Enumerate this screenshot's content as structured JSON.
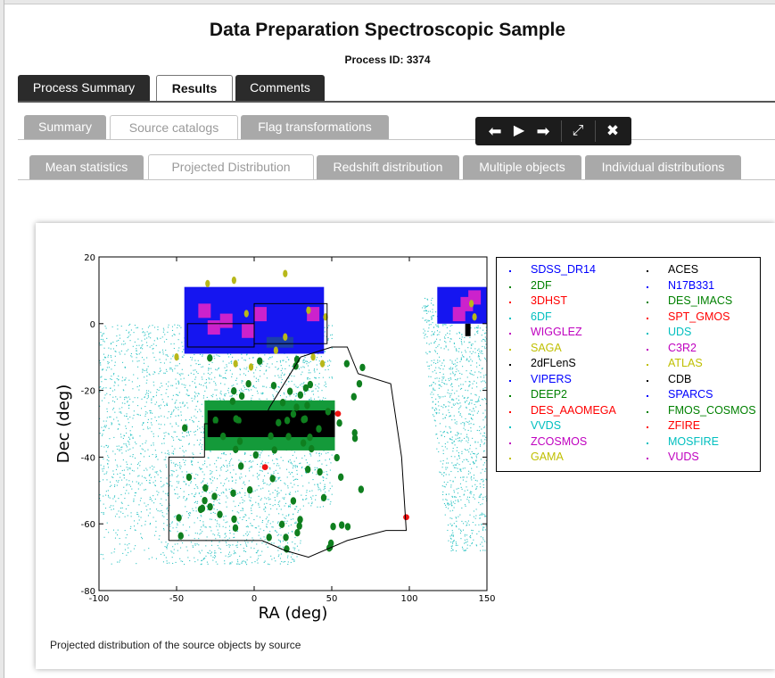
{
  "page": {
    "title": "Data Preparation Spectroscopic Sample",
    "process_id": "Process ID: 3374"
  },
  "main_tabs": [
    {
      "label": "Process Summary",
      "active": false
    },
    {
      "label": "Results",
      "active": true
    },
    {
      "label": "Comments",
      "active": false
    }
  ],
  "result_tabs": [
    {
      "label": "Summary",
      "active": false
    },
    {
      "label": "Source catalogs",
      "active": true
    },
    {
      "label": "Flag transformations",
      "active": false
    }
  ],
  "catalog_tabs": [
    {
      "label": "Mean statistics",
      "active": false
    },
    {
      "label": "Projected Distribution",
      "active": true
    },
    {
      "label": "Redshift distribution",
      "active": false
    },
    {
      "label": "Multiple objects",
      "active": false
    },
    {
      "label": "Individual distributions",
      "active": false
    }
  ],
  "toolbar": {
    "icons": [
      "arrow-left-icon",
      "play-icon",
      "arrow-right-icon",
      "fullscreen-icon",
      "close-icon"
    ],
    "glyphs": [
      "⬅",
      "▶",
      "➡",
      "⤢",
      "✖"
    ]
  },
  "figure": {
    "caption": "Projected distribution of the source objects by source"
  },
  "chart_data": {
    "type": "scatter",
    "xlabel": "RA (deg)",
    "ylabel": "Dec (deg)",
    "xlim": [
      -100,
      150
    ],
    "ylim": [
      -80,
      20
    ],
    "xticks": [
      -100,
      -50,
      0,
      50,
      100,
      150
    ],
    "yticks": [
      20,
      0,
      -20,
      -40,
      -60,
      -80
    ],
    "grid": false,
    "legend_position": "right",
    "legend": [
      {
        "name": "SDSS_DR14",
        "color": "#0000ff"
      },
      {
        "name": "2DF",
        "color": "#008000"
      },
      {
        "name": "3DHST",
        "color": "#ff0000"
      },
      {
        "name": "6DF",
        "color": "#00bfbf"
      },
      {
        "name": "WIGGLEZ",
        "color": "#bf00bf"
      },
      {
        "name": "SAGA",
        "color": "#bfbf00"
      },
      {
        "name": "2dFLenS",
        "color": "#000000"
      },
      {
        "name": "VIPERS",
        "color": "#0000ff"
      },
      {
        "name": "DEEP2",
        "color": "#008000"
      },
      {
        "name": "DES_AAOMEGA",
        "color": "#ff0000"
      },
      {
        "name": "VVDS",
        "color": "#00bfbf"
      },
      {
        "name": "ZCOSMOS",
        "color": "#bf00bf"
      },
      {
        "name": "GAMA",
        "color": "#bfbf00"
      },
      {
        "name": "ACES",
        "color": "#000000"
      },
      {
        "name": "N17B331",
        "color": "#0000ff"
      },
      {
        "name": "DES_IMACS",
        "color": "#008000"
      },
      {
        "name": "SPT_GMOS",
        "color": "#ff0000"
      },
      {
        "name": "UDS",
        "color": "#00bfbf"
      },
      {
        "name": "C3R2",
        "color": "#bf00bf"
      },
      {
        "name": "ATLAS",
        "color": "#bfbf00"
      },
      {
        "name": "CDB",
        "color": "#000000"
      },
      {
        "name": "SPARCS",
        "color": "#0000ff"
      },
      {
        "name": "FMOS_COSMOS",
        "color": "#008000"
      },
      {
        "name": "ZFIRE",
        "color": "#ff0000"
      },
      {
        "name": "MOSFIRE",
        "color": "#00bfbf"
      },
      {
        "name": "VUDS",
        "color": "#bf00bf"
      }
    ],
    "regions": [
      {
        "source": "6DF",
        "shape": "wide cyan scatter",
        "ra_range": [
          -100,
          150
        ],
        "dec_range": [
          -70,
          0
        ]
      },
      {
        "source": "SDSS_DR14",
        "shape": "blue band",
        "ra_range": [
          -45,
          45
        ],
        "dec_range": [
          -10,
          10
        ]
      },
      {
        "source": "2dFLenS",
        "shape": "black band",
        "ra_range": [
          -30,
          52
        ],
        "dec_range": [
          -35,
          -25
        ]
      }
    ],
    "footprint_outline": [
      [
        -55,
        -65
      ],
      [
        -55,
        -40
      ],
      [
        -32,
        -40
      ],
      [
        -32,
        -30
      ],
      [
        5,
        -30
      ],
      [
        10,
        -25
      ],
      [
        30,
        -10
      ],
      [
        50,
        -7
      ],
      [
        60,
        -7
      ],
      [
        67,
        -15
      ],
      [
        88,
        -18
      ],
      [
        95,
        -40
      ],
      [
        98,
        -62
      ],
      [
        85,
        -62
      ],
      [
        60,
        -65
      ],
      [
        35,
        -70
      ],
      [
        20,
        -68
      ],
      [
        5,
        -65
      ],
      [
        -55,
        -65
      ]
    ]
  }
}
